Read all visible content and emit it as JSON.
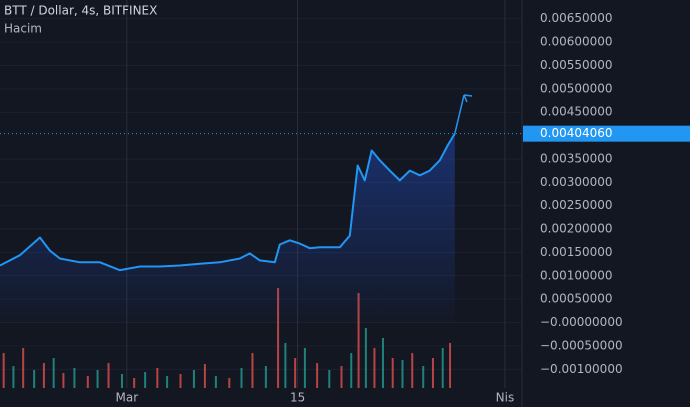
{
  "chart_data": {
    "type": "area",
    "title": "BTT / Dollar, 4s, BITFINEX",
    "subtitle": "Hacim",
    "color": "#2196f3",
    "x": [
      -10.41,
      -8.77,
      -7.13,
      -6.31,
      -5.49,
      -3.85,
      -2.21,
      -0.57,
      1.07,
      2.7,
      4.34,
      5.98,
      7.62,
      9.26,
      10.08,
      10.9,
      12.13,
      12.54,
      13.36,
      14.18,
      15.0,
      15.82,
      17.46,
      18.28,
      18.93,
      19.51,
      20.08,
      20.74,
      21.56,
      22.38,
      23.2,
      24.02,
      24.84,
      25.66,
      26.31,
      26.89
    ],
    "values": [
      0.00122,
      0.00144,
      0.00182,
      0.00154,
      0.00137,
      0.00129,
      0.00129,
      0.00112,
      0.0012,
      0.0012,
      0.00122,
      0.00126,
      0.00129,
      0.00137,
      0.00148,
      0.00133,
      0.00129,
      0.00167,
      0.00176,
      0.00169,
      0.00159,
      0.00161,
      0.00161,
      0.00186,
      0.00336,
      0.00304,
      0.00368,
      0.00347,
      0.00325,
      0.00304,
      0.00325,
      0.00315,
      0.00325,
      0.00347,
      0.00379,
      0.0040406
    ],
    "last_price": {
      "value": 0.0040406,
      "label": "0.00404060"
    },
    "xlim": [
      -10.4,
      32.4
    ],
    "xticks": [
      {
        "value": 0,
        "label": "Mar"
      },
      {
        "value": 14,
        "label": "15"
      },
      {
        "value": 31,
        "label": "Nis"
      }
    ],
    "ylim": [
      -0.0014,
      0.0069
    ],
    "yticks": [
      {
        "value": 0.0065,
        "label": "0.00650000"
      },
      {
        "value": 0.006,
        "label": "0.00600000"
      },
      {
        "value": 0.0055,
        "label": "0.00550000"
      },
      {
        "value": 0.005,
        "label": "0.00500000"
      },
      {
        "value": 0.0045,
        "label": "0.00450000"
      },
      {
        "value": 0.0035,
        "label": "0.00350000"
      },
      {
        "value": 0.003,
        "label": "0.00300000"
      },
      {
        "value": 0.0025,
        "label": "0.00250000"
      },
      {
        "value": 0.002,
        "label": "0.00200000"
      },
      {
        "value": 0.0015,
        "label": "0.00150000"
      },
      {
        "value": 0.001,
        "label": "0.00100000"
      },
      {
        "value": 0.0005,
        "label": "0.00050000"
      },
      {
        "value": 0,
        "label": "−0.00000000"
      },
      {
        "value": -0.0005,
        "label": "−0.00050000"
      },
      {
        "value": -0.001,
        "label": "−0.00100000"
      }
    ],
    "grid": true,
    "volume": {
      "ylim": [
        0,
        100
      ],
      "x": [
        -10.1,
        -9.3,
        -8.5,
        -7.6,
        -6.8,
        -6.0,
        -5.2,
        -4.3,
        -3.2,
        -2.4,
        -1.5,
        -0.4,
        0.6,
        1.5,
        2.5,
        3.3,
        4.4,
        5.5,
        6.4,
        7.3,
        8.4,
        9.4,
        10.3,
        11.4,
        12.4,
        13.0,
        13.8,
        14.6,
        15.6,
        16.6,
        17.6,
        18.4,
        19.0,
        19.6,
        20.3,
        21.0,
        21.8,
        22.6,
        23.4,
        24.3,
        25.1,
        25.9,
        26.5
      ],
      "values": [
        35,
        22,
        40,
        18,
        25,
        30,
        15,
        20,
        12,
        18,
        25,
        14,
        10,
        16,
        20,
        12,
        14,
        18,
        24,
        12,
        10,
        20,
        35,
        22,
        100,
        45,
        30,
        40,
        25,
        18,
        22,
        35,
        95,
        60,
        40,
        50,
        30,
        28,
        35,
        22,
        30,
        40,
        45
      ],
      "colors": [
        "#ef5350",
        "#26a69a",
        "#ef5350",
        "#26a69a",
        "#ef5350",
        "#26a69a",
        "#ef5350",
        "#26a69a",
        "#ef5350",
        "#26a69a",
        "#ef5350",
        "#26a69a",
        "#ef5350",
        "#26a69a",
        "#ef5350",
        "#26a69a",
        "#ef5350",
        "#26a69a",
        "#ef5350",
        "#26a69a",
        "#ef5350",
        "#26a69a",
        "#ef5350",
        "#26a69a",
        "#ef5350",
        "#26a69a",
        "#ef5350",
        "#26a69a",
        "#ef5350",
        "#26a69a",
        "#ef5350",
        "#26a69a",
        "#ef5350",
        "#26a69a",
        "#ef5350",
        "#26a69a",
        "#ef5350",
        "#26a69a",
        "#ef5350",
        "#26a69a",
        "#ef5350",
        "#26a69a",
        "#ef5350"
      ]
    }
  }
}
